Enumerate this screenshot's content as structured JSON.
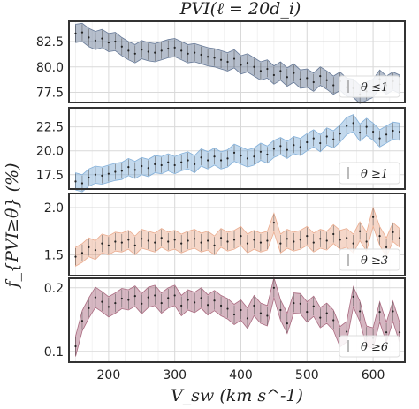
{
  "figure": {
    "title": "PVI(ℓ  = 20d_i)",
    "ylabel": "f_{PVI≥θ} (%)",
    "xlabel": "V_sw (km s^-1)"
  },
  "chart_data": [
    {
      "type": "line",
      "legend": "θ ≤1",
      "color": "#5b6f8f",
      "ylim": [
        76.5,
        84.5
      ],
      "yticks": [
        77.5,
        80.0,
        82.5
      ],
      "ytick_labels": [
        "77.5",
        "80.0",
        "82.5"
      ],
      "xlim": [
        140,
        648
      ],
      "x": [
        150,
        160,
        170,
        180,
        190,
        200,
        210,
        220,
        230,
        240,
        250,
        260,
        270,
        280,
        290,
        300,
        310,
        320,
        330,
        340,
        350,
        360,
        370,
        380,
        390,
        400,
        410,
        420,
        430,
        440,
        450,
        460,
        470,
        480,
        490,
        500,
        510,
        520,
        530,
        540,
        550,
        560,
        570,
        580,
        590,
        600,
        610,
        620,
        630,
        640
      ],
      "values": [
        83.3,
        83.4,
        82.9,
        82.6,
        82.8,
        82.4,
        82.5,
        82.0,
        81.6,
        81.3,
        81.7,
        81.5,
        81.4,
        81.6,
        81.8,
        81.9,
        81.6,
        81.3,
        81.4,
        81.2,
        81.0,
        80.9,
        80.7,
        80.5,
        80.8,
        80.2,
        80.4,
        80.0,
        79.6,
        79.8,
        79.2,
        79.6,
        79.0,
        79.4,
        78.8,
        78.9,
        78.5,
        79.1,
        78.7,
        78.2,
        78.6,
        78.0,
        77.9,
        77.3,
        77.6,
        77.9,
        78.8,
        78.2,
        78.6,
        78.3
      ],
      "band": 0.9
    },
    {
      "type": "line",
      "legend": "θ ≥1",
      "color": "#7aaad6",
      "ylim": [
        16.0,
        24.5
      ],
      "yticks": [
        17.5,
        20.0,
        22.5
      ],
      "ytick_labels": [
        "17.5",
        "20.0",
        "22.5"
      ],
      "xlim": [
        140,
        648
      ],
      "x": [
        150,
        160,
        170,
        180,
        190,
        200,
        210,
        220,
        230,
        240,
        250,
        260,
        270,
        280,
        290,
        300,
        310,
        320,
        330,
        340,
        350,
        360,
        370,
        380,
        390,
        400,
        410,
        420,
        430,
        440,
        450,
        460,
        470,
        480,
        490,
        500,
        510,
        520,
        530,
        540,
        550,
        560,
        570,
        580,
        590,
        600,
        610,
        620,
        630,
        640
      ],
      "values": [
        16.8,
        16.6,
        17.2,
        17.5,
        17.4,
        17.6,
        17.8,
        17.9,
        18.3,
        18.0,
        18.4,
        18.2,
        18.6,
        18.5,
        18.8,
        18.5,
        18.8,
        19.0,
        18.6,
        19.3,
        19.0,
        19.4,
        19.0,
        19.2,
        19.8,
        19.5,
        19.2,
        19.4,
        19.9,
        19.6,
        20.2,
        20.5,
        20.1,
        20.6,
        20.4,
        20.9,
        21.3,
        20.8,
        21.5,
        21.2,
        21.8,
        22.6,
        22.9,
        21.9,
        22.5,
        22.0,
        21.3,
        21.7,
        22.1,
        22.0
      ],
      "band": 0.9
    },
    {
      "type": "line",
      "legend": "θ ≥3",
      "color": "#e9a687",
      "ylim": [
        1.28,
        2.15
      ],
      "yticks": [
        1.5,
        2.0
      ],
      "ytick_labels": [
        "1.5",
        "2.0"
      ],
      "xlim": [
        140,
        648
      ],
      "x": [
        150,
        160,
        170,
        180,
        190,
        200,
        210,
        220,
        230,
        240,
        250,
        260,
        270,
        280,
        290,
        300,
        310,
        320,
        330,
        340,
        350,
        360,
        370,
        380,
        390,
        400,
        410,
        420,
        430,
        440,
        450,
        460,
        470,
        480,
        490,
        500,
        510,
        520,
        530,
        540,
        550,
        560,
        570,
        580,
        590,
        600,
        610,
        620,
        630,
        640
      ],
      "values": [
        1.48,
        1.52,
        1.58,
        1.55,
        1.62,
        1.6,
        1.64,
        1.63,
        1.66,
        1.6,
        1.67,
        1.65,
        1.63,
        1.68,
        1.64,
        1.66,
        1.62,
        1.65,
        1.67,
        1.63,
        1.65,
        1.6,
        1.68,
        1.64,
        1.66,
        1.7,
        1.62,
        1.66,
        1.63,
        1.65,
        1.84,
        1.62,
        1.67,
        1.64,
        1.66,
        1.7,
        1.63,
        1.67,
        1.65,
        1.72,
        1.66,
        1.68,
        1.62,
        1.75,
        1.64,
        1.9,
        1.7,
        1.58,
        1.74,
        1.68
      ],
      "band": 0.1
    },
    {
      "type": "line",
      "legend": "θ ≥6",
      "color": "#a35f77",
      "ylim": [
        0.083,
        0.215
      ],
      "yticks": [
        0.1,
        0.2
      ],
      "ytick_labels": [
        "0.1",
        "0.2"
      ],
      "xlim": [
        140,
        648
      ],
      "x": [
        150,
        160,
        170,
        180,
        190,
        200,
        210,
        220,
        230,
        240,
        250,
        260,
        270,
        280,
        290,
        300,
        310,
        320,
        330,
        340,
        350,
        360,
        370,
        380,
        390,
        400,
        410,
        420,
        430,
        440,
        450,
        460,
        470,
        480,
        490,
        500,
        510,
        520,
        530,
        540,
        550,
        560,
        570,
        580,
        590,
        600,
        610,
        620,
        630,
        640
      ],
      "values": [
        0.108,
        0.148,
        0.168,
        0.185,
        0.178,
        0.17,
        0.176,
        0.183,
        0.181,
        0.187,
        0.175,
        0.185,
        0.188,
        0.176,
        0.184,
        0.188,
        0.172,
        0.181,
        0.177,
        0.184,
        0.173,
        0.18,
        0.172,
        0.167,
        0.158,
        0.165,
        0.152,
        0.172,
        0.16,
        0.156,
        0.2,
        0.165,
        0.144,
        0.176,
        0.175,
        0.162,
        0.171,
        0.153,
        0.16,
        0.149,
        0.123,
        0.131,
        0.186,
        0.163,
        0.124,
        0.121,
        0.162,
        0.13,
        0.163,
        0.13
      ],
      "band": 0.016
    }
  ],
  "xaxis": {
    "ticks": [
      200,
      300,
      400,
      500,
      600
    ],
    "tick_labels": [
      "200",
      "300",
      "400",
      "500",
      "600"
    ]
  }
}
